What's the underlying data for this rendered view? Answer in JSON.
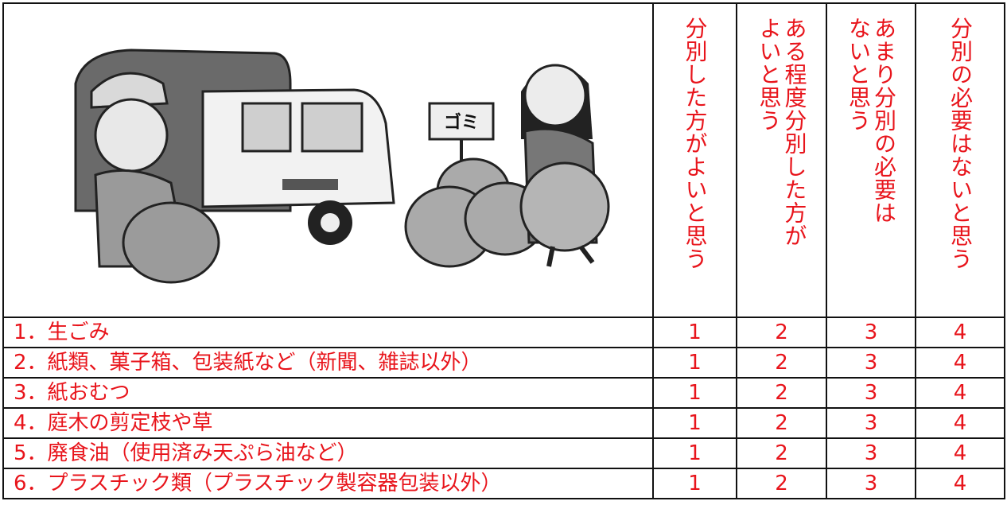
{
  "table": {
    "columns": [
      "分別した方がよいと思う",
      "ある程度分別した方がよいと思う",
      "あまり分別の必要はないと思う",
      "分別の必要はないと思う"
    ],
    "rows": [
      {
        "label": "1．生ごみ",
        "choices": [
          1,
          2,
          3,
          4
        ]
      },
      {
        "label": "2．紙類、菓子箱、包装紙など（新聞、雑誌以外）",
        "choices": [
          1,
          2,
          3,
          4
        ]
      },
      {
        "label": "3．紙おむつ",
        "choices": [
          1,
          2,
          3,
          4
        ]
      },
      {
        "label": "4．庭木の剪定枝や草",
        "choices": [
          1,
          2,
          3,
          4
        ]
      },
      {
        "label": "5．廃食油（使用済み天ぷら油など）",
        "choices": [
          1,
          2,
          3,
          4
        ]
      },
      {
        "label": "6．プラスチック類（プラスチック製容器包装以外）",
        "choices": [
          1,
          2,
          3,
          4
        ]
      }
    ],
    "sign": "ゴミ"
  }
}
